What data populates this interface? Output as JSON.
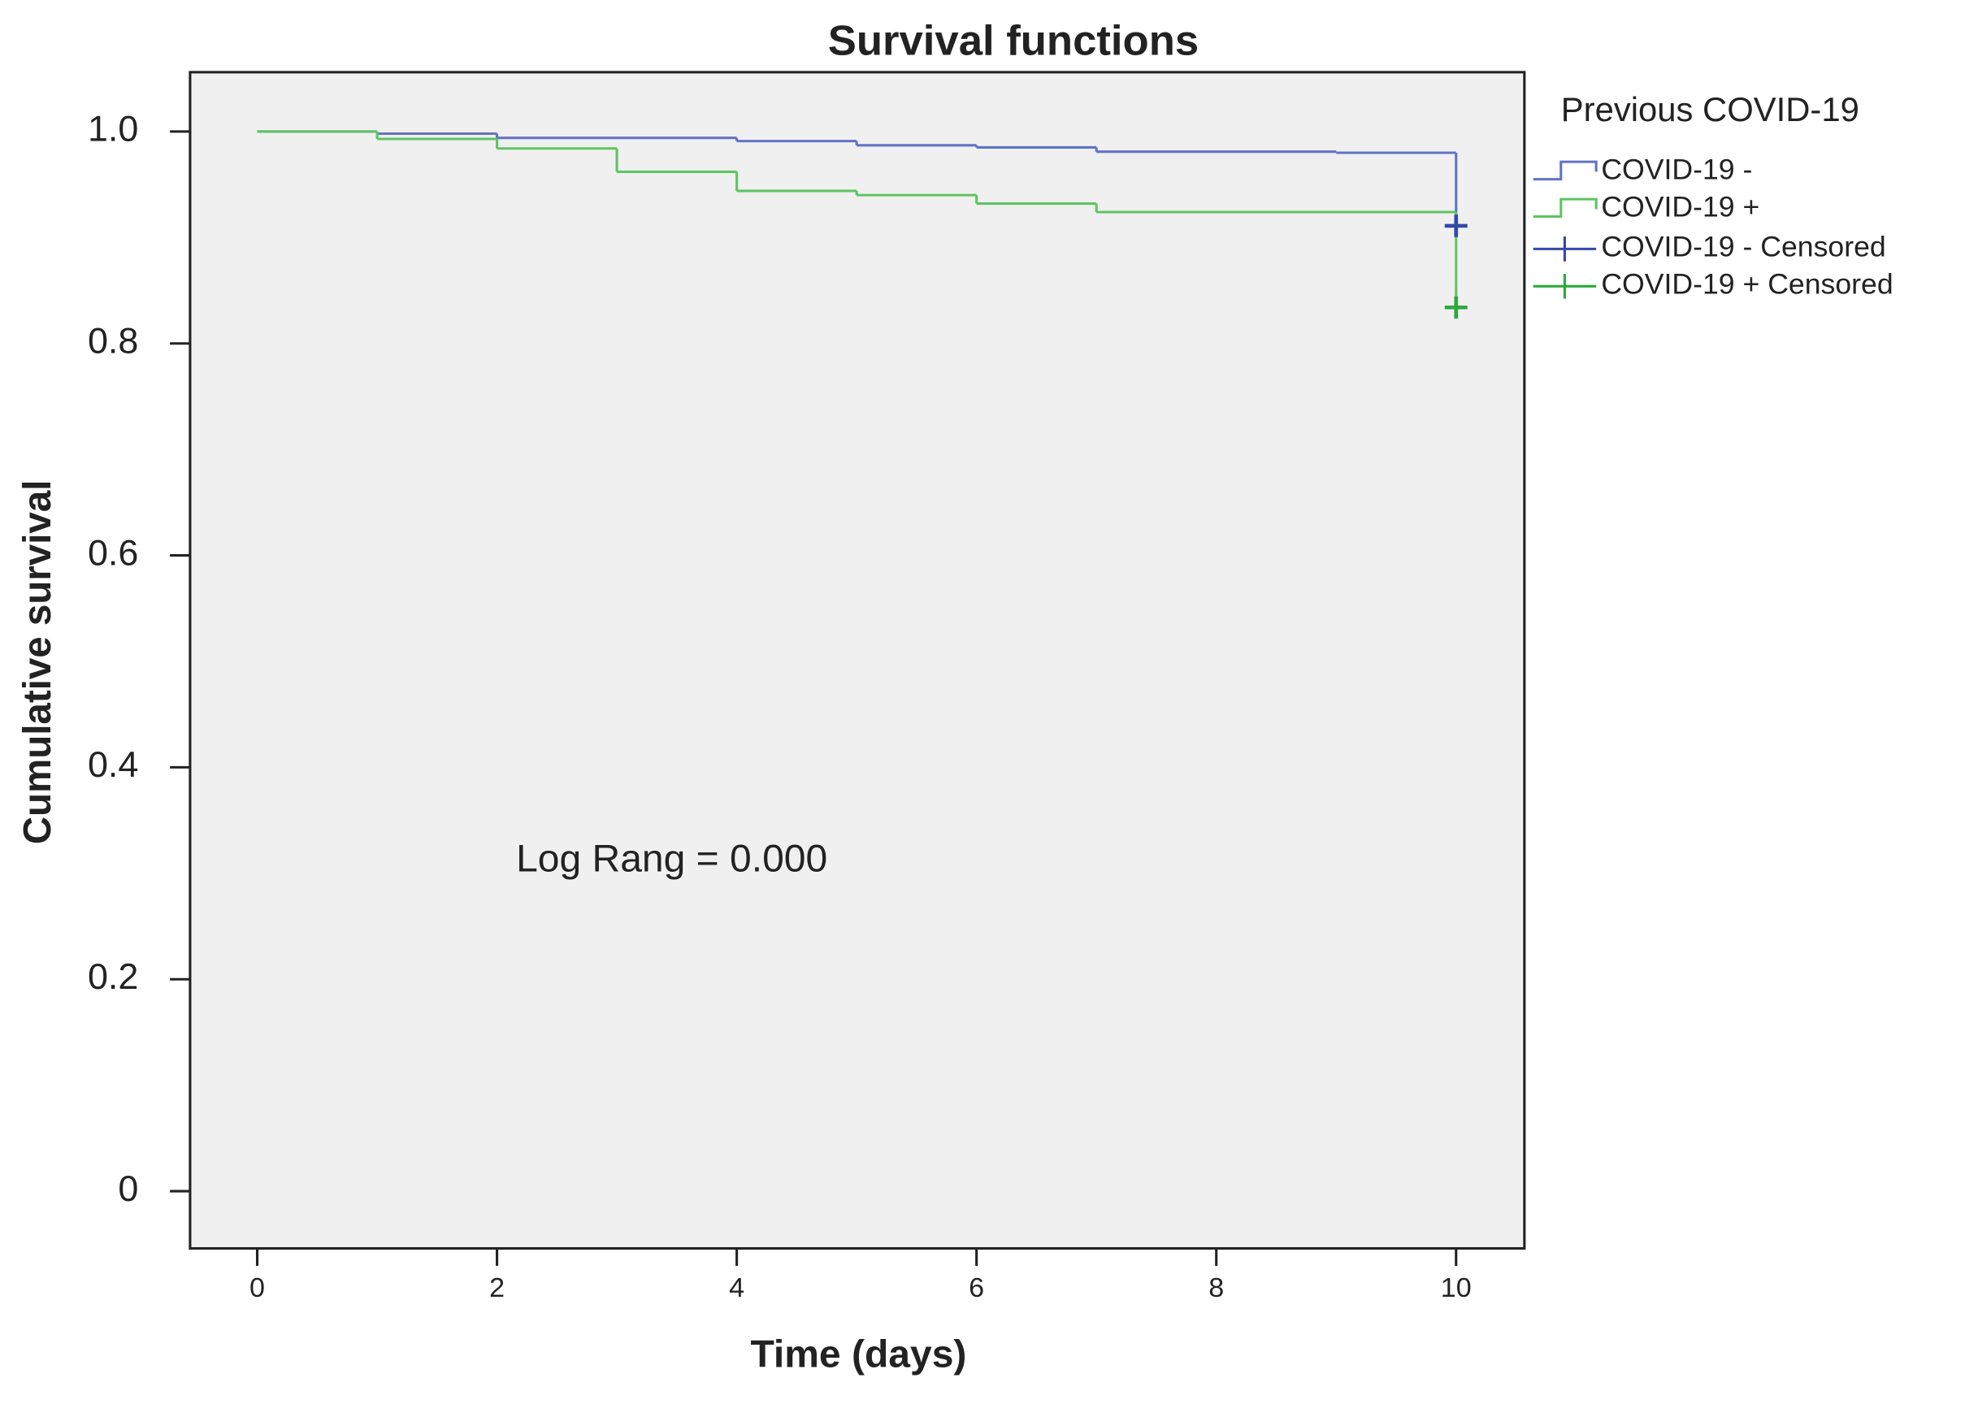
{
  "chart_data": {
    "type": "step",
    "title": "Survival functions",
    "x_label": "Time (days)",
    "y_label": "Cumulative survival",
    "annotation": "Log Rang = 0.000",
    "legend_title": "Previous COVID-19",
    "legend": "right",
    "grid": false,
    "xlim": [
      -0.56,
      10.57
    ],
    "xticks": [
      0,
      2,
      4,
      6,
      8,
      10
    ],
    "ylim": [
      -0.054,
      1.056
    ],
    "yticks": [
      0,
      0.2,
      0.4,
      0.6,
      0.8,
      {
        "value": 1,
        "label": "1.0"
      }
    ],
    "series": [
      {
        "name": "COVID-19 -",
        "color": "#6373c4",
        "x": [
          0,
          1,
          2,
          4,
          5,
          6,
          7,
          9,
          10
        ],
        "values": [
          1,
          0.998,
          0.994,
          0.991,
          0.987,
          0.985,
          0.981,
          0.98,
          0.911
        ]
      },
      {
        "name": "COVID-19 +",
        "color": "#5fc462",
        "x": [
          0,
          1,
          2,
          3,
          4,
          5,
          6,
          7,
          10
        ],
        "values": [
          1,
          0.993,
          0.984,
          0.962,
          0.944,
          0.94,
          0.932,
          0.924,
          0.834
        ]
      }
    ],
    "censored": [
      {
        "name": "COVID-19 - Censored",
        "color": "#3447a6",
        "x": [
          10
        ],
        "values": [
          0.911
        ]
      },
      {
        "name": "COVID-19 + Censored",
        "color": "#2da83c",
        "x": [
          10
        ],
        "values": [
          0.834
        ]
      }
    ]
  }
}
